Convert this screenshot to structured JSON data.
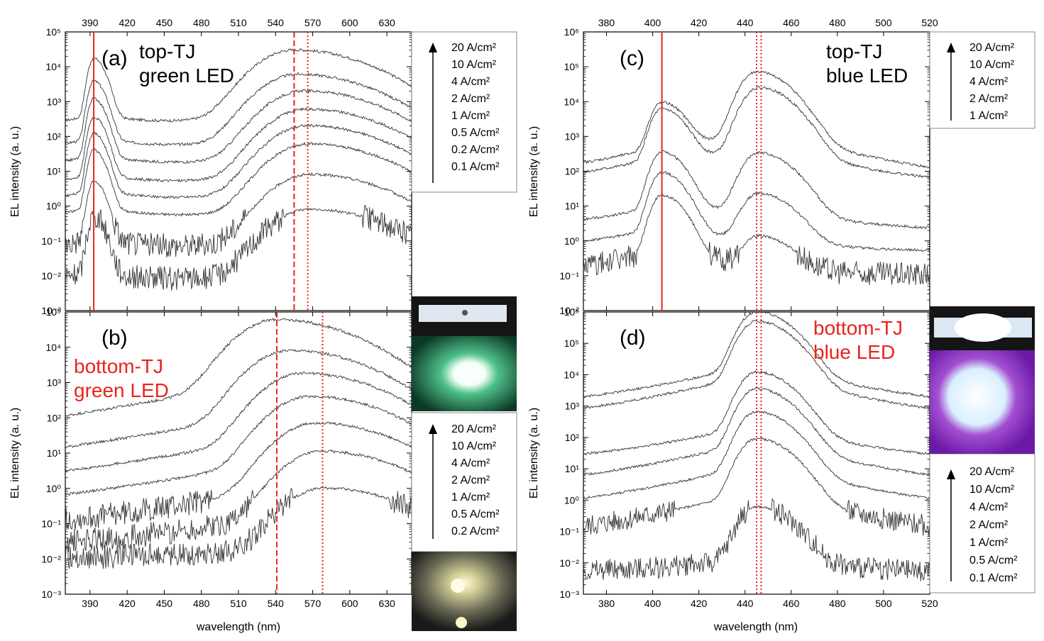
{
  "figure": {
    "xlabel": "wavelength (nm)",
    "ylabel": "EL intensity (a. u.)",
    "colors": {
      "curve": "#333333",
      "marker": "#e8241c",
      "red_text": "#e8241c"
    }
  },
  "chart_data": [
    {
      "id": "a",
      "type": "line",
      "panel_label": "(a)",
      "annotation": [
        "top-TJ",
        "green LED"
      ],
      "annotation_color": "#000000",
      "xlim": [
        370,
        650
      ],
      "x_ticks": [
        390,
        420,
        450,
        480,
        510,
        540,
        570,
        600,
        630
      ],
      "x_ticks_on_top": true,
      "ylog": true,
      "ylim_exp": [
        -3,
        5
      ],
      "legend": [
        "20 A/cm²",
        "10 A/cm²",
        "4 A/cm²",
        "2 A/cm²",
        "1 A/cm²",
        "0.5 A/cm²",
        "0.2 A/cm²",
        "0.1 A/cm²"
      ],
      "vlines": [
        {
          "x": 393,
          "style": "solid"
        },
        {
          "x": 555,
          "style": "dashed"
        },
        {
          "x": 566,
          "style": "dotted"
        }
      ],
      "series": [
        {
          "peaks": [
            [
              393,
              17000
            ],
            [
              555,
              30000
            ]
          ],
          "base": 0.12,
          "min_x": 465,
          "min_y": 60.0
        },
        {
          "peaks": [
            [
              393,
              3800
            ],
            [
              558,
              6000
            ]
          ],
          "base": 0.03,
          "min_x": 468,
          "min_y": 20.0
        },
        {
          "peaks": [
            [
              393,
              1200
            ],
            [
              563,
              2000
            ]
          ],
          "base": 0.01,
          "min_x": 470,
          "min_y": 8
        },
        {
          "peaks": [
            [
              393,
              350
            ],
            [
              565,
              600
            ]
          ],
          "base": 0.005,
          "min_x": 472,
          "min_y": 3
        },
        {
          "peaks": [
            [
              393,
              120
            ],
            [
              566,
              200
            ]
          ],
          "base": 0.003,
          "min_x": 472,
          "min_y": 1.2
        },
        {
          "peaks": [
            [
              393,
              40
            ],
            [
              567,
              60
            ]
          ],
          "base": 0.002,
          "min_x": 474,
          "min_y": 0.6
        },
        {
          "peaks": [
            [
              393,
              5
            ],
            [
              568,
              8
            ]
          ],
          "base": 0.001,
          "min_x": 475,
          "min_y": 0.25
        },
        {
          "peaks": [
            [
              393,
              0.5
            ],
            [
              568,
              0.8
            ]
          ],
          "base": 0.001,
          "min_x": 478,
          "min_y": 0.1
        }
      ]
    },
    {
      "id": "b",
      "type": "line",
      "panel_label": "(b)",
      "annotation": [
        "bottom-TJ",
        "green LED"
      ],
      "annotation_color": "#e8241c",
      "xlim": [
        370,
        650
      ],
      "x_ticks": [
        390,
        420,
        450,
        480,
        510,
        540,
        570,
        600,
        630
      ],
      "x_ticks_on_top": false,
      "ylog": true,
      "ylim_exp": [
        -3,
        5
      ],
      "legend": [
        "20 A/cm²",
        "10 A/cm²",
        "4 A/cm²",
        "2 A/cm²",
        "1 A/cm²",
        "0.5 A/cm²",
        "0.2 A/cm²"
      ],
      "vlines": [
        {
          "x": 541,
          "style": "dashed"
        },
        {
          "x": 578,
          "style": "dotted"
        }
      ],
      "series": [
        {
          "peaks": [
            [
              541,
              60000
            ]
          ],
          "base": 10,
          "min_x": 460,
          "min_y": 8
        },
        {
          "peaks": [
            [
              552,
              8000
            ]
          ],
          "base": 3,
          "min_x": 470,
          "min_y": 2
        },
        {
          "peaks": [
            [
              562,
              1800
            ]
          ],
          "base": 0.8,
          "min_x": 480,
          "min_y": 0.5
        },
        {
          "peaks": [
            [
              568,
              400
            ]
          ],
          "base": 0.2,
          "min_x": 490,
          "min_y": 0.1
        },
        {
          "peaks": [
            [
              573,
              70
            ]
          ],
          "base": 0.05,
          "min_x": 500,
          "min_y": 0.03
        },
        {
          "peaks": [
            [
              578,
              11
            ]
          ],
          "base": 0.02,
          "min_x": 510,
          "min_y": 0.01
        },
        {
          "peaks": [
            [
              580,
              1
            ]
          ],
          "base": 0.01,
          "min_x": 520,
          "min_y": 0.005
        }
      ]
    },
    {
      "id": "c",
      "type": "line",
      "panel_label": "(c)",
      "annotation": [
        "top-TJ",
        "blue LED"
      ],
      "annotation_color": "#000000",
      "xlim": [
        370,
        520
      ],
      "x_ticks": [
        380,
        400,
        420,
        440,
        460,
        480,
        500,
        520
      ],
      "x_ticks_on_top": true,
      "ylog": true,
      "ylim_exp": [
        -2,
        6
      ],
      "legend": [
        "20 A/cm²",
        "10 A/cm²",
        "4 A/cm²",
        "2 A/cm²",
        "1 A/cm²"
      ],
      "vlines": [
        {
          "x": 404,
          "style": "solid"
        },
        {
          "x": 445,
          "style": "dotted"
        },
        {
          "x": 447,
          "style": "dotted"
        }
      ],
      "series": [
        {
          "peaks": [
            [
              404,
              9000
            ],
            [
              445,
              70000
            ]
          ],
          "base": 60,
          "min_x": 420,
          "min_y": 1200
        },
        {
          "peaks": [
            [
              404,
              6000
            ],
            [
              446,
              25000
            ]
          ],
          "base": 40,
          "min_x": 420,
          "min_y": 900
        },
        {
          "peaks": [
            [
              404,
              350
            ],
            [
              446,
              330
            ]
          ],
          "base": 2,
          "min_x": 423,
          "min_y": 25
        },
        {
          "peaks": [
            [
              404,
              90
            ],
            [
              446,
              22
            ]
          ],
          "base": 0.5,
          "min_x": 425,
          "min_y": 4
        },
        {
          "peaks": [
            [
              404,
              20
            ],
            [
              446,
              1.2
            ]
          ],
          "base": 0.1,
          "min_x": 428,
          "min_y": 0.8
        }
      ]
    },
    {
      "id": "d",
      "type": "line",
      "panel_label": "(d)",
      "annotation": [
        "bottom-TJ",
        "blue LED"
      ],
      "annotation_color": "#e8241c",
      "xlim": [
        370,
        520
      ],
      "x_ticks": [
        380,
        400,
        420,
        440,
        460,
        480,
        500,
        520
      ],
      "x_ticks_on_top": false,
      "ylog": true,
      "ylim_exp": [
        -3,
        6
      ],
      "legend": [
        "20  A/cm²",
        "10  A/cm²",
        "4  A/cm²",
        "2  A/cm²",
        "1  A/cm²",
        "0.5 A/cm²",
        "0.1 A/cm²"
      ],
      "vlines": [
        {
          "x": 445,
          "style": "dotted"
        },
        {
          "x": 447,
          "style": "dotted"
        }
      ],
      "series": [
        {
          "peaks": [
            [
              445,
              1000000
            ]
          ],
          "base": 1000,
          "min_x": 400,
          "min_y": 1000
        },
        {
          "peaks": [
            [
              445,
              500000
            ]
          ],
          "base": 350,
          "min_x": 400,
          "min_y": 350
        },
        {
          "peaks": [
            [
              445,
              12000
            ]
          ],
          "base": 18,
          "min_x": 400,
          "min_y": 18
        },
        {
          "peaks": [
            [
              445,
              3500
            ]
          ],
          "base": 3,
          "min_x": 400,
          "min_y": 3
        },
        {
          "peaks": [
            [
              445,
              650
            ]
          ],
          "base": 0.5,
          "min_x": 400,
          "min_y": 0.5
        },
        {
          "peaks": [
            [
              445,
              90
            ]
          ],
          "base": 0.06,
          "min_x": 400,
          "min_y": 0.06
        },
        {
          "peaks": [
            [
              445,
              0.6
            ]
          ],
          "base": 0.005,
          "min_x": 400,
          "min_y": 0.005
        }
      ]
    }
  ]
}
